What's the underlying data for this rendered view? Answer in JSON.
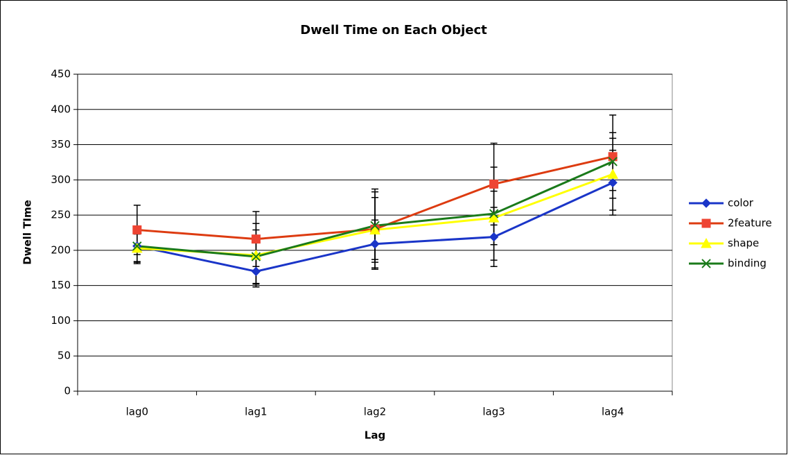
{
  "chart_data": {
    "type": "line",
    "title": "Dwell Time on Each Object",
    "x_label": "Lag",
    "y_label": "Dwell TIme",
    "categories": [
      "lag0",
      "lag1",
      "lag2",
      "lag3",
      "lag4"
    ],
    "series": [
      {
        "name": "color",
        "color": "#1a35c8",
        "marker": "diamond",
        "values": [
          206,
          170,
          209,
          219,
          296
        ],
        "errors": [
          25,
          18,
          34,
          42,
          46
        ]
      },
      {
        "name": "2feature",
        "color": "#dd3b10",
        "marker": "square",
        "values": [
          229,
          216,
          230,
          294,
          333
        ],
        "errors": [
          35,
          39,
          57,
          58,
          59
        ]
      },
      {
        "name": "shape",
        "color": "#ffff00",
        "marker": "triangle",
        "values": [
          203,
          193,
          229,
          246,
          308
        ],
        "errors": [
          20,
          45,
          46,
          38,
          51
        ]
      },
      {
        "name": "binding",
        "color": "#1a7a1a",
        "marker": "x",
        "values": [
          206,
          191,
          235,
          252,
          326
        ],
        "errors": [
          22,
          38,
          48,
          66,
          41
        ]
      }
    ],
    "ylim": [
      0,
      450
    ],
    "yticks": [
      0,
      50,
      100,
      150,
      200,
      250,
      300,
      350,
      400,
      450
    ],
    "grid": true,
    "legend": "right"
  }
}
